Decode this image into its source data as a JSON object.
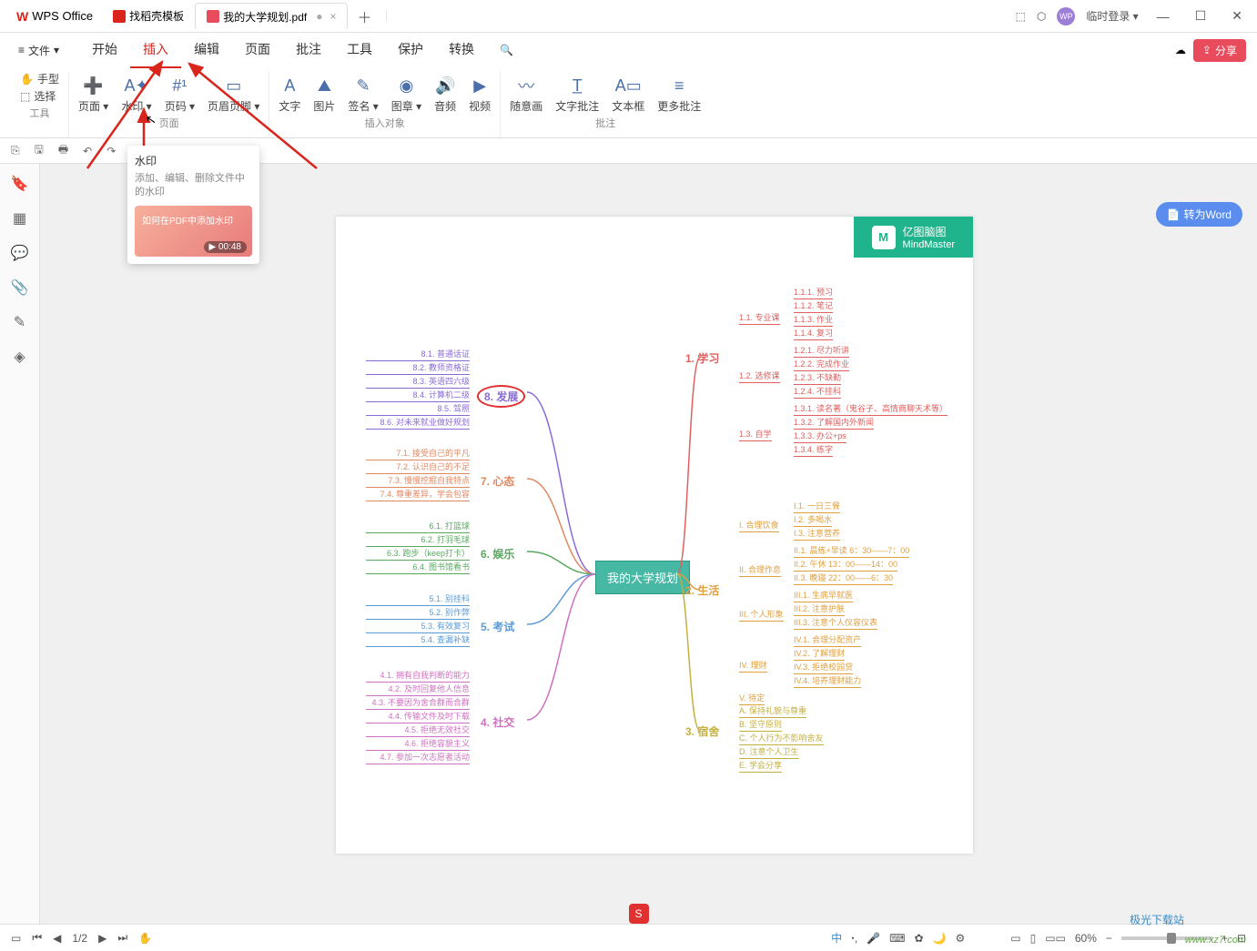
{
  "app_name": "WPS Office",
  "tabs": [
    {
      "label": "找稻壳模板",
      "icon": "red"
    },
    {
      "label": "我的大学规划.pdf",
      "icon": "pdf",
      "active": true,
      "status": "●"
    }
  ],
  "titlebar_right": {
    "login": "临时登录",
    "icons": {
      "book": "⬚",
      "cube": "⬡"
    }
  },
  "window_controls": {
    "min": "—",
    "max": "☐",
    "close": "✕"
  },
  "file_menu": "文件",
  "menu": [
    "开始",
    "插入",
    "编辑",
    "页面",
    "批注",
    "工具",
    "保护",
    "转换"
  ],
  "menu_active_index": 1,
  "share_btn": "分享",
  "cloud_icon": "☁",
  "ribbon": {
    "group_tools": {
      "label": "工具",
      "items": [
        {
          "icon": "✋",
          "label": "手型"
        },
        {
          "icon": "⬚",
          "label": "选择"
        }
      ]
    },
    "group_page": {
      "label": "页面",
      "items": [
        {
          "icon": "➕",
          "label": "页面 ▾"
        },
        {
          "icon": "A✦",
          "label": "水印 ▾"
        },
        {
          "icon": "#¹",
          "label": "页码 ▾"
        },
        {
          "icon": "▭",
          "label": "页眉页脚 ▾"
        }
      ]
    },
    "group_insert": {
      "label": "插入对象",
      "items": [
        {
          "icon": "A",
          "label": "文字"
        },
        {
          "icon": "⛰",
          "label": "图片"
        },
        {
          "icon": "✎",
          "label": "签名 ▾"
        },
        {
          "icon": "◉",
          "label": "图章 ▾"
        },
        {
          "icon": "🔊",
          "label": "音频"
        },
        {
          "icon": "▶",
          "label": "视频"
        }
      ]
    },
    "group_annot": {
      "label": "批注",
      "items": [
        {
          "icon": "〰",
          "label": "随意画"
        },
        {
          "icon": "T̲",
          "label": "文字批注"
        },
        {
          "icon": "A▭",
          "label": "文本框"
        },
        {
          "icon": "≡",
          "label": "更多批注"
        }
      ]
    }
  },
  "quick": [
    "⎘",
    "🖫",
    "🖶",
    "↶",
    "↷",
    "↻"
  ],
  "side": [
    "🔖",
    "▦",
    "💬",
    "📎",
    "✎",
    "◈"
  ],
  "tooltip": {
    "title": "水印",
    "desc": "添加、编辑、删除文件中的水印",
    "video_text": "如何在PDF中添加水印",
    "video_time": "00:48"
  },
  "convert_btn": "转为Word",
  "mindmap": {
    "brand1": "亿图脑图",
    "brand2": "MindMaster",
    "center": "我的大学规划",
    "right": [
      {
        "label": "1. 学习",
        "color": "#e06060",
        "sub": [
          {
            "label": "1.1. 专业课",
            "items": [
              "1.1.1. 预习",
              "1.1.2. 笔记",
              "1.1.3. 作业",
              "1.1.4. 复习"
            ]
          },
          {
            "label": "1.2. 选修课",
            "items": [
              "1.2.1. 尽力听讲",
              "1.2.2. 完成作业",
              "1.2.3. 不缺勤",
              "1.2.4. 不挂科"
            ]
          },
          {
            "label": "1.3. 自学",
            "items": [
              "1.3.1. 读名著（鬼谷子、高情商聊天术等）",
              "1.3.2. 了解国内外新闻",
              "1.3.3. 办公+ps",
              "1.3.4. 练字"
            ]
          }
        ]
      },
      {
        "label": "2. 生活",
        "color": "#e0a040",
        "sub": [
          {
            "label": "I. 合理饮食",
            "items": [
              "I.1. 一日三餐",
              "I.2. 多喝水",
              "I.3. 注意营养"
            ]
          },
          {
            "label": "II. 合理作息",
            "items": [
              "II.1. 晨练+早读 6：30——7：00",
              "II.2. 午休 13：00——14：00",
              "II.3. 晚寝 22：00——6：30"
            ]
          },
          {
            "label": "III. 个人形象",
            "items": [
              "III.1. 生病早就医",
              "III.2. 注意护肤",
              "III.3. 注意个人仪容仪表"
            ]
          },
          {
            "label": "IV. 理财",
            "items": [
              "IV.1. 合理分配资产",
              "IV.2. 了解理财",
              "IV.3. 拒绝校园贷",
              "IV.4. 培养理财能力"
            ]
          },
          {
            "label": "V. 待定",
            "items": []
          }
        ]
      },
      {
        "label": "3. 宿舍",
        "color": "#c4b040",
        "sub": [
          {
            "label": "",
            "items": [
              "A. 保持礼貌与尊重",
              "B. 坚守原则",
              "C. 个人行为不影响舍友",
              "D. 注意个人卫生",
              "E. 学会分享"
            ]
          }
        ]
      }
    ],
    "left": [
      {
        "label": "8. 发展",
        "color": "#8a6bd6",
        "circled": true,
        "items": [
          "8.1. 普通话证",
          "8.2. 教师资格证",
          "8.3. 英语四六级",
          "8.4. 计算机二级",
          "8.5. 驾照",
          "8.6. 对未来就业做好规划"
        ]
      },
      {
        "label": "7. 心态",
        "color": "#e08860",
        "items": [
          "7.1. 接受自己的平凡",
          "7.2. 认识自己的不足",
          "7.3. 慢慢挖掘自我特点",
          "7.4. 尊重差异，学会包容"
        ]
      },
      {
        "label": "6. 娱乐",
        "color": "#5aa860",
        "items": [
          "6.1. 打篮球",
          "6.2. 打羽毛球",
          "6.3. 跑步（keep打卡）",
          "6.4. 图书馆看书"
        ]
      },
      {
        "label": "5. 考试",
        "color": "#5b9bd5",
        "items": [
          "5.1. 别挂科",
          "5.2. 别作弊",
          "5.3. 有效复习",
          "5.4. 查漏补缺"
        ]
      },
      {
        "label": "4. 社交",
        "color": "#d070c0",
        "items": [
          "4.1. 拥有自我判断的能力",
          "4.2. 及时回复他人信息",
          "4.3. 不要因为舍合群而合群",
          "4.4. 传输文件及时下载",
          "4.5. 拒绝无效社交",
          "4.6. 拒绝容貌主义",
          "4.7. 参加一次志愿者活动"
        ]
      }
    ]
  },
  "statusbar": {
    "page_current": "1",
    "page_total": "2",
    "zoom": "60%",
    "arrows": {
      "first": "⏮",
      "prev": "◀",
      "next": "▶",
      "last": "⏭"
    }
  },
  "watermark": {
    "site": "www.xz7.com",
    "brand": "极光下载站"
  },
  "colors": {
    "accent_red": "#d9251c",
    "pink": "#e84b5b",
    "teal": "#47b8a4",
    "green_badge": "#1fb48b",
    "blue_btn": "#5b8def"
  }
}
